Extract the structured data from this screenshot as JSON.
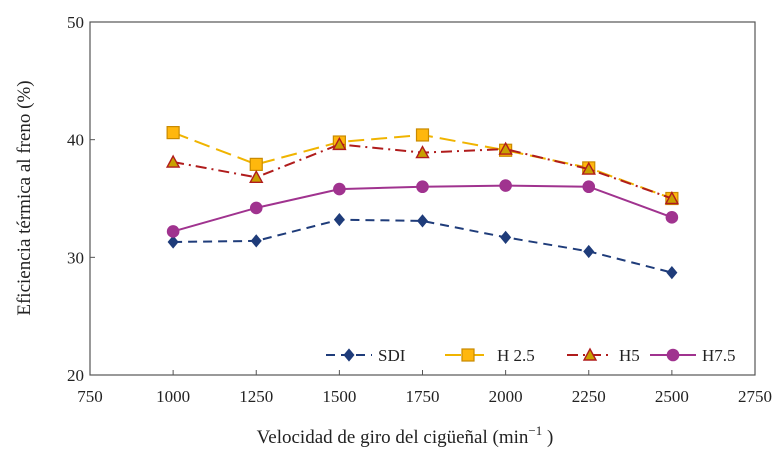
{
  "chart_data": {
    "type": "line",
    "title": "",
    "xlabel": "Velocidad de giro del cigüeñal (min",
    "xlabel_sup": "−1",
    "xlabel_close": " )",
    "ylabel": "Eficiencia térmica al freno (%)",
    "xlim": [
      750,
      2750
    ],
    "ylim": [
      20,
      50
    ],
    "xticks": [
      750,
      1000,
      1250,
      1500,
      1750,
      2000,
      2250,
      2500,
      2750
    ],
    "yticks": [
      20,
      30,
      40,
      50
    ],
    "x": [
      1000,
      1250,
      1500,
      1750,
      2000,
      2250,
      2500
    ],
    "grid": false,
    "legend_position": "bottom-right",
    "series": [
      {
        "name": "SDI",
        "color": "#1f3c7a",
        "marker": "diamond",
        "dash": "dashed",
        "values": [
          31.3,
          31.4,
          33.2,
          33.1,
          31.7,
          30.5,
          28.7
        ]
      },
      {
        "name": "H 2.5",
        "color": "#f0b400",
        "marker": "square",
        "dash": "longdash",
        "values": [
          40.6,
          37.9,
          39.8,
          40.4,
          39.1,
          37.6,
          35.0
        ]
      },
      {
        "name": "H5",
        "color": "#b01c1c",
        "marker": "triangle",
        "dash": "dashdot",
        "values": [
          38.1,
          36.8,
          39.6,
          38.9,
          39.2,
          37.5,
          35.0
        ]
      },
      {
        "name": "H7.5",
        "color": "#a0338f",
        "marker": "circle",
        "dash": "solid",
        "values": [
          32.2,
          34.2,
          35.8,
          36.0,
          36.1,
          36.0,
          33.4
        ]
      }
    ]
  }
}
